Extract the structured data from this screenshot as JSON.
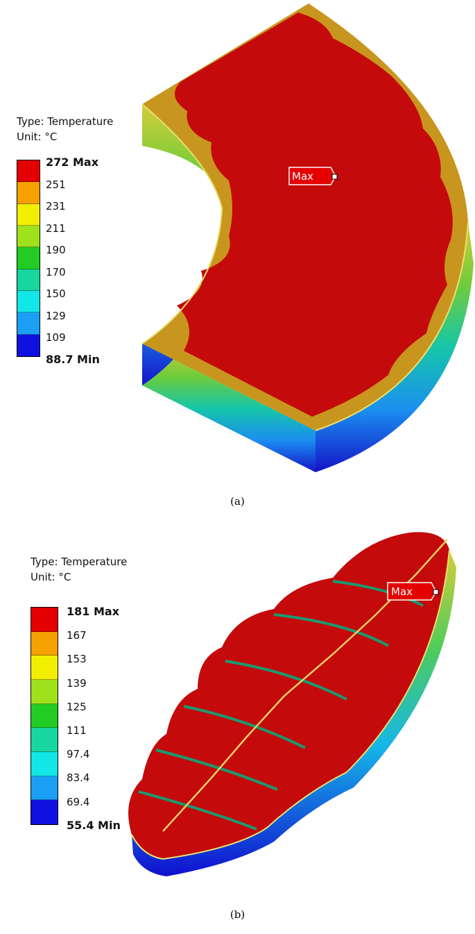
{
  "figure_a": {
    "legend": {
      "type_label": "Type: Temperature",
      "unit_label": "Unit: °C",
      "ticks": [
        "272 Max",
        "251",
        "231",
        "211",
        "190",
        "170",
        "150",
        "129",
        "109",
        "88.7 Min"
      ],
      "band_colors": [
        "#e40000",
        "#f5a100",
        "#f2ee00",
        "#9fe11a",
        "#22cc22",
        "#18d6a0",
        "#12e6e6",
        "#1a9ff5",
        "#1010e0"
      ]
    },
    "max_marker": "Max",
    "caption": "(a)"
  },
  "figure_b": {
    "legend": {
      "type_label": "Type: Temperature",
      "unit_label": "Unit: °C",
      "ticks": [
        "181 Max",
        "167",
        "153",
        "139",
        "125",
        "111",
        "97.4",
        "83.4",
        "69.4",
        "55.4 Min"
      ],
      "band_colors": [
        "#e40000",
        "#f5a100",
        "#f2ee00",
        "#9fe11a",
        "#22cc22",
        "#18d6a0",
        "#12e6e6",
        "#1a9ff5",
        "#1010e0"
      ]
    },
    "max_marker": "Max",
    "caption": "(b)"
  },
  "colors": {
    "hot": "#c40a0a",
    "warm": "#c8961e"
  }
}
